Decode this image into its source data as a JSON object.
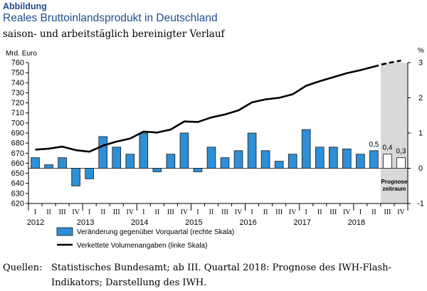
{
  "header": {
    "label": "Abbildung",
    "title": "Reales Bruttoinlandsprodukt in Deutschland",
    "subtitle": "saison- und arbeitstäglich bereinigter Verlauf"
  },
  "source": {
    "label": "Quellen:",
    "text": "Statistisches Bundesamt; ab III. Quartal 2018: Prognose des IWH-Flash-Indikators; Darstellung des IWH."
  },
  "colors": {
    "bar_fill": "#2e8fd6",
    "bar_stroke": "#1a1a1a",
    "forecast_fill": "#ffffff",
    "forecast_band": "#d9d9d9",
    "line": "#000000",
    "title": "#1f4e8c"
  },
  "chart_data": {
    "type": "bar+line",
    "left_axis": {
      "unit_label": "Mrd. Euro",
      "range": [
        620,
        760
      ],
      "ticks": [
        "620",
        "630",
        "640",
        "650",
        "660",
        "670",
        "680",
        "690",
        "700",
        "710",
        "720",
        "730",
        "740",
        "750",
        "760"
      ]
    },
    "right_axis": {
      "unit_label": "%",
      "range": [
        -1,
        3
      ],
      "ticks": [
        "-1",
        "0",
        "1",
        "2",
        "3"
      ]
    },
    "quarter_labels": [
      "I",
      "II",
      "III",
      "IV",
      "I",
      "II",
      "III",
      "IV",
      "I",
      "II",
      "III",
      "IV",
      "I",
      "II",
      "III",
      "IV",
      "I",
      "II",
      "III",
      "IV",
      "I",
      "II",
      "III",
      "IV",
      "I",
      "II",
      "III",
      "IV"
    ],
    "years": [
      "2012",
      "2013",
      "2014",
      "2015",
      "2016",
      "2017",
      "2018"
    ],
    "forecast_start_index": 26,
    "forecast_label": [
      "Prognose",
      "zeitraum"
    ],
    "series": [
      {
        "name": "Veränderung gegenüber Vorquartal (rechte Skala)",
        "kind": "bar",
        "axis": "right",
        "values": [
          0.3,
          0.1,
          0.3,
          -0.5,
          -0.3,
          0.9,
          0.6,
          0.4,
          1.0,
          -0.1,
          0.4,
          1.0,
          -0.1,
          0.6,
          0.3,
          0.5,
          1.0,
          0.5,
          0.2,
          0.4,
          1.1,
          0.6,
          0.6,
          0.55,
          0.4,
          0.5,
          0.4,
          0.3
        ],
        "data_labels": {
          "25": "0,5",
          "26": "0,4",
          "27": "0,3"
        }
      },
      {
        "name": "Verkettete Volumenangaben (linke Skala)",
        "kind": "line",
        "axis": "left",
        "values": [
          673.5,
          674.5,
          676.5,
          673.0,
          671.5,
          677.5,
          681.5,
          684.5,
          691.5,
          690.5,
          693.5,
          701.5,
          701.0,
          705.5,
          708.5,
          712.5,
          720.5,
          723.5,
          725.0,
          728.5,
          737.0,
          741.5,
          745.5,
          749.5,
          752.5,
          756.0,
          759.5,
          762.0
        ]
      }
    ]
  }
}
